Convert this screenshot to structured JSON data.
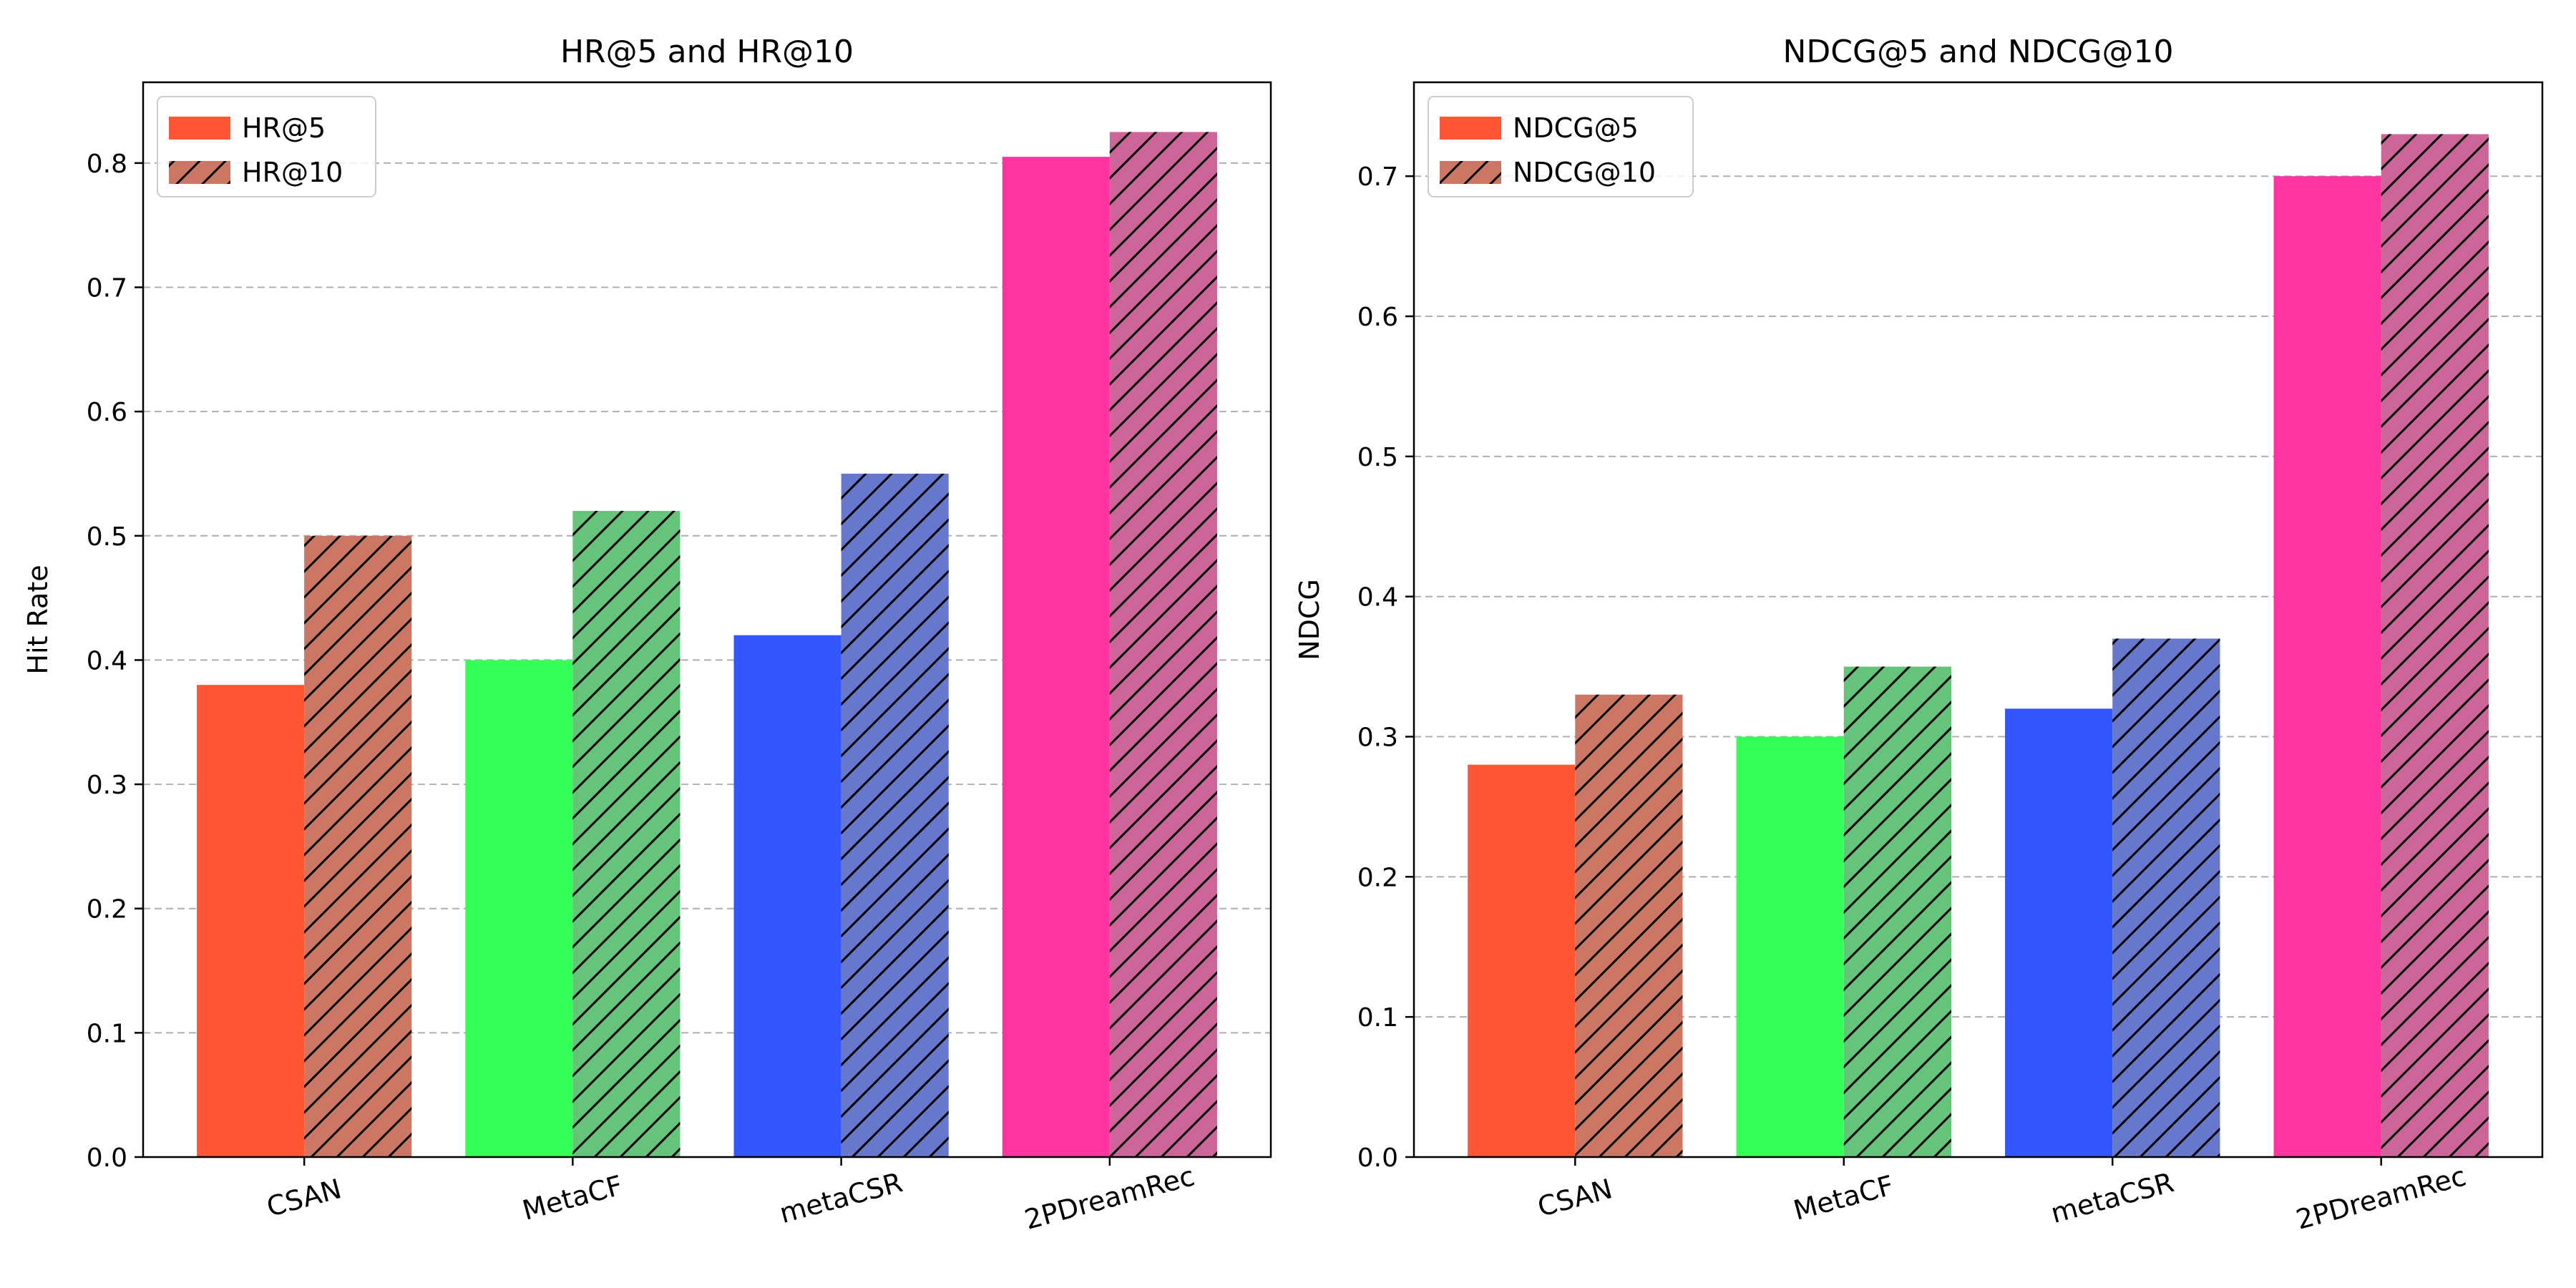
{
  "chart_data": [
    {
      "type": "bar",
      "title": "HR@5 and HR@10",
      "xlabel": "",
      "ylabel": "Hit Rate",
      "categories": [
        "CSAN",
        "MetaCF",
        "metaCSR",
        "2PDreamRec"
      ],
      "ylim": [
        0,
        0.865
      ],
      "yticks": [
        0.0,
        0.1,
        0.2,
        0.3,
        0.4,
        0.5,
        0.6,
        0.7,
        0.8
      ],
      "ytick_labels": [
        "0.0",
        "0.1",
        "0.2",
        "0.3",
        "0.4",
        "0.5",
        "0.6",
        "0.7",
        "0.8"
      ],
      "grid": "y-dashed",
      "legend_position": "top-left",
      "series": [
        {
          "name": "HR@5",
          "values": [
            0.38,
            0.4,
            0.42,
            0.805
          ],
          "hatch": false,
          "colors": [
            "#ff5733",
            "#33ff57",
            "#3357ff",
            "#ff33a1"
          ],
          "legend_color": "#ff5733"
        },
        {
          "name": "HR@10",
          "values": [
            0.5,
            0.52,
            0.55,
            0.825
          ],
          "hatch": true,
          "colors": [
            "#cc7763",
            "#66c47a",
            "#6677cc",
            "#cc6699"
          ],
          "legend_color": "#cc7763"
        }
      ]
    },
    {
      "type": "bar",
      "title": "NDCG@5 and NDCG@10",
      "xlabel": "",
      "ylabel": "NDCG",
      "categories": [
        "CSAN",
        "MetaCF",
        "metaCSR",
        "2PDreamRec"
      ],
      "ylim": [
        0,
        0.767
      ],
      "yticks": [
        0.0,
        0.1,
        0.2,
        0.3,
        0.4,
        0.5,
        0.6,
        0.7
      ],
      "ytick_labels": [
        "0.0",
        "0.1",
        "0.2",
        "0.3",
        "0.4",
        "0.5",
        "0.6",
        "0.7"
      ],
      "grid": "y-dashed",
      "legend_position": "top-left",
      "series": [
        {
          "name": "NDCG@5",
          "values": [
            0.28,
            0.3,
            0.32,
            0.7
          ],
          "hatch": false,
          "colors": [
            "#ff5733",
            "#33ff57",
            "#3357ff",
            "#ff33a1"
          ],
          "legend_color": "#ff5733"
        },
        {
          "name": "NDCG@10",
          "values": [
            0.33,
            0.35,
            0.37,
            0.73
          ],
          "hatch": true,
          "colors": [
            "#cc7763",
            "#66c47a",
            "#6677cc",
            "#cc6699"
          ],
          "legend_color": "#cc7763"
        }
      ]
    }
  ]
}
